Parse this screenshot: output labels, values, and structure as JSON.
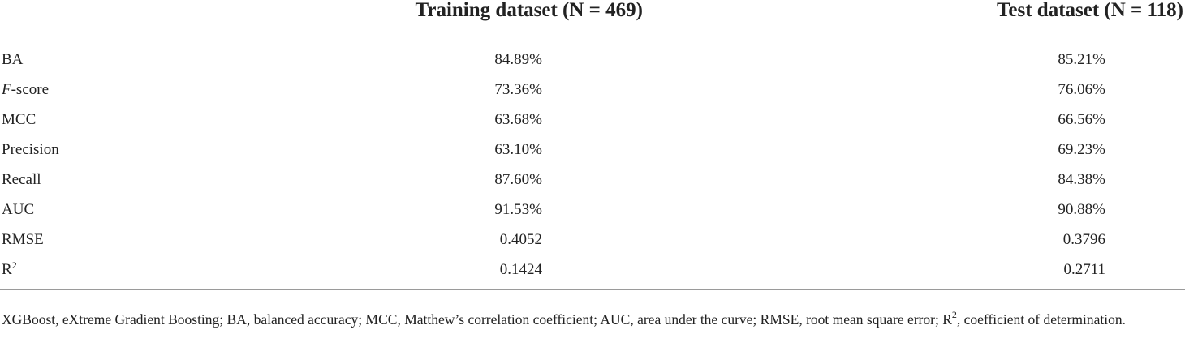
{
  "table": {
    "headers": [
      "",
      "Training dataset (N = 469)",
      "Test dataset (N = 118)"
    ],
    "rows": [
      {
        "metric": "BA",
        "metric_italic": "",
        "metric_suffix": "",
        "metric_sup": "",
        "train": "84.89%",
        "test": "85.21%"
      },
      {
        "metric": "",
        "metric_italic": "F",
        "metric_suffix": "-score",
        "metric_sup": "",
        "train": "73.36%",
        "test": "76.06%"
      },
      {
        "metric": "MCC",
        "metric_italic": "",
        "metric_suffix": "",
        "metric_sup": "",
        "train": "63.68%",
        "test": "66.56%"
      },
      {
        "metric": "Precision",
        "metric_italic": "",
        "metric_suffix": "",
        "metric_sup": "",
        "train": "63.10%",
        "test": "69.23%"
      },
      {
        "metric": "Recall",
        "metric_italic": "",
        "metric_suffix": "",
        "metric_sup": "",
        "train": "87.60%",
        "test": "84.38%"
      },
      {
        "metric": "AUC",
        "metric_italic": "",
        "metric_suffix": "",
        "metric_sup": "",
        "train": "91.53%",
        "test": "90.88%"
      },
      {
        "metric": "RMSE",
        "metric_italic": "",
        "metric_suffix": "",
        "metric_sup": "",
        "train": "0.4052",
        "test": "0.3796"
      },
      {
        "metric": "R",
        "metric_italic": "",
        "metric_suffix": "",
        "metric_sup": "2",
        "train": "0.1424",
        "test": "0.2711"
      }
    ]
  },
  "footnote": {
    "part1": "XGBoost, eXtreme Gradient Boosting; BA, balanced accuracy; MCC, Matthew’s correlation coefficient; AUC, area under the curve; RMSE, root mean square error; R",
    "sup": "2",
    "part2": ", coefficient of determination."
  }
}
